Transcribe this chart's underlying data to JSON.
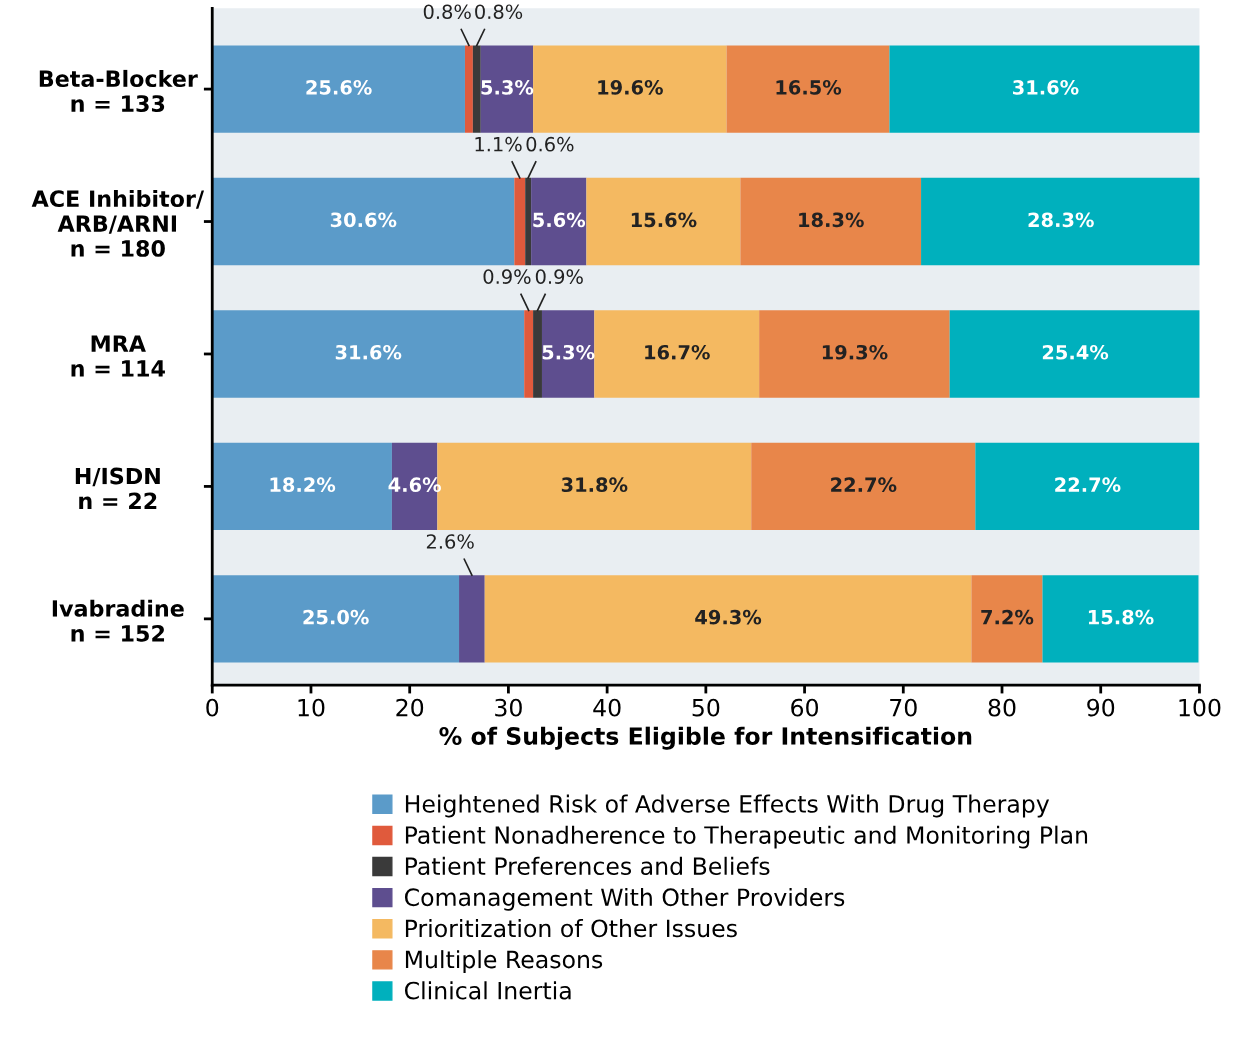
{
  "chart_data": {
    "type": "bar",
    "orientation": "horizontal",
    "stacked": true,
    "categories": [
      "Beta-Blocker\nn = 133",
      "ACE Inhibitor/\nARB/ARNI\nn = 180",
      "MRA\nn = 114",
      "H/ISDN\nn = 22",
      "Ivabradine\nn = 152"
    ],
    "xlabel": "% of Subjects Eligible for Intensification",
    "xlim": [
      0,
      100
    ],
    "xticks": [
      0,
      10,
      20,
      30,
      40,
      50,
      60,
      70,
      80,
      90,
      100
    ],
    "grid": false,
    "legend": "bottom",
    "series": [
      {
        "name": "Heightened Risk of Adverse Effects With Drug Therapy",
        "color": "#5b9bc9",
        "values": [
          25.6,
          30.6,
          31.6,
          18.2,
          25.0
        ],
        "value_labels": [
          "25.6%",
          "30.6%",
          "31.6%",
          "18.2%",
          "25.0%"
        ]
      },
      {
        "name": "Patient Nonadherence to Therapeutic and Monitoring Plan",
        "color": "#e05a3c",
        "values": [
          0.8,
          1.1,
          0.9,
          null,
          null
        ],
        "value_labels": [
          "0.8%",
          "1.1%",
          "0.9%",
          null,
          null
        ]
      },
      {
        "name": "Patient Preferences and Beliefs",
        "color": "#3a3a3a",
        "values": [
          0.8,
          0.6,
          0.9,
          null,
          null
        ],
        "value_labels": [
          "0.8%",
          "0.6%",
          "0.9%",
          null,
          null
        ]
      },
      {
        "name": "Comanagement With Other Providers",
        "color": "#5e4e8f",
        "values": [
          5.3,
          5.6,
          5.3,
          4.6,
          2.6
        ],
        "value_labels": [
          "5.3%",
          "5.6%",
          "5.3%",
          "4.6%",
          "2.6%"
        ]
      },
      {
        "name": "Prioritization of Other Issues",
        "color": "#f4b961",
        "values": [
          19.6,
          15.6,
          16.7,
          31.8,
          49.3
        ],
        "value_labels": [
          "19.6%",
          "15.6%",
          "16.7%",
          "31.8%",
          "49.3%"
        ]
      },
      {
        "name": "Multiple Reasons",
        "color": "#e8864a",
        "values": [
          16.5,
          18.3,
          19.3,
          22.7,
          7.2
        ],
        "value_labels": [
          "16.5%",
          "18.3%",
          "19.3%",
          "22.7%",
          "7.2%"
        ]
      },
      {
        "name": "Clinical Inertia",
        "color": "#00b0bd",
        "values": [
          31.6,
          28.3,
          25.4,
          22.7,
          15.8
        ],
        "value_labels": [
          "31.6%",
          "28.3%",
          "25.4%",
          "22.7%",
          "15.8%"
        ]
      }
    ]
  }
}
